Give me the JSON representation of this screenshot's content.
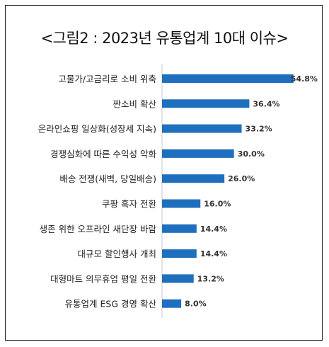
{
  "title": "<그림2 : 2023년 유통업계 10대 이슈>",
  "chart_data": {
    "type": "bar",
    "orientation": "horizontal",
    "title": "<그림2 : 2023년 유통업계 10대 이슈>",
    "xlabel": "",
    "ylabel": "",
    "grid": false,
    "legend": "none",
    "bar_color": "#1f6fbf",
    "categories": [
      "고물가/고금리로 소비 위축",
      "짠소비 확산",
      "온라인쇼핑 일상화(성장세 지속)",
      "경쟁심화에 따른 수익성 악화",
      "배송 전쟁(새벽, 당일배송)",
      "쿠팡 흑자 전환",
      "생존 위한 오프라인 새단장 바람",
      "대규모 할인행사 개최",
      "대형마트 의무휴업 평일 전환",
      "유통업계 ESG 경영 확산"
    ],
    "values": [
      54.8,
      36.4,
      33.2,
      30.0,
      26.0,
      16.0,
      14.4,
      14.4,
      13.2,
      8.0
    ],
    "value_labels": [
      "54.8%",
      "36.4%",
      "33.2%",
      "30.0%",
      "26.0%",
      "16.0%",
      "14.4%",
      "14.4%",
      "13.2%",
      "8.0%"
    ]
  }
}
